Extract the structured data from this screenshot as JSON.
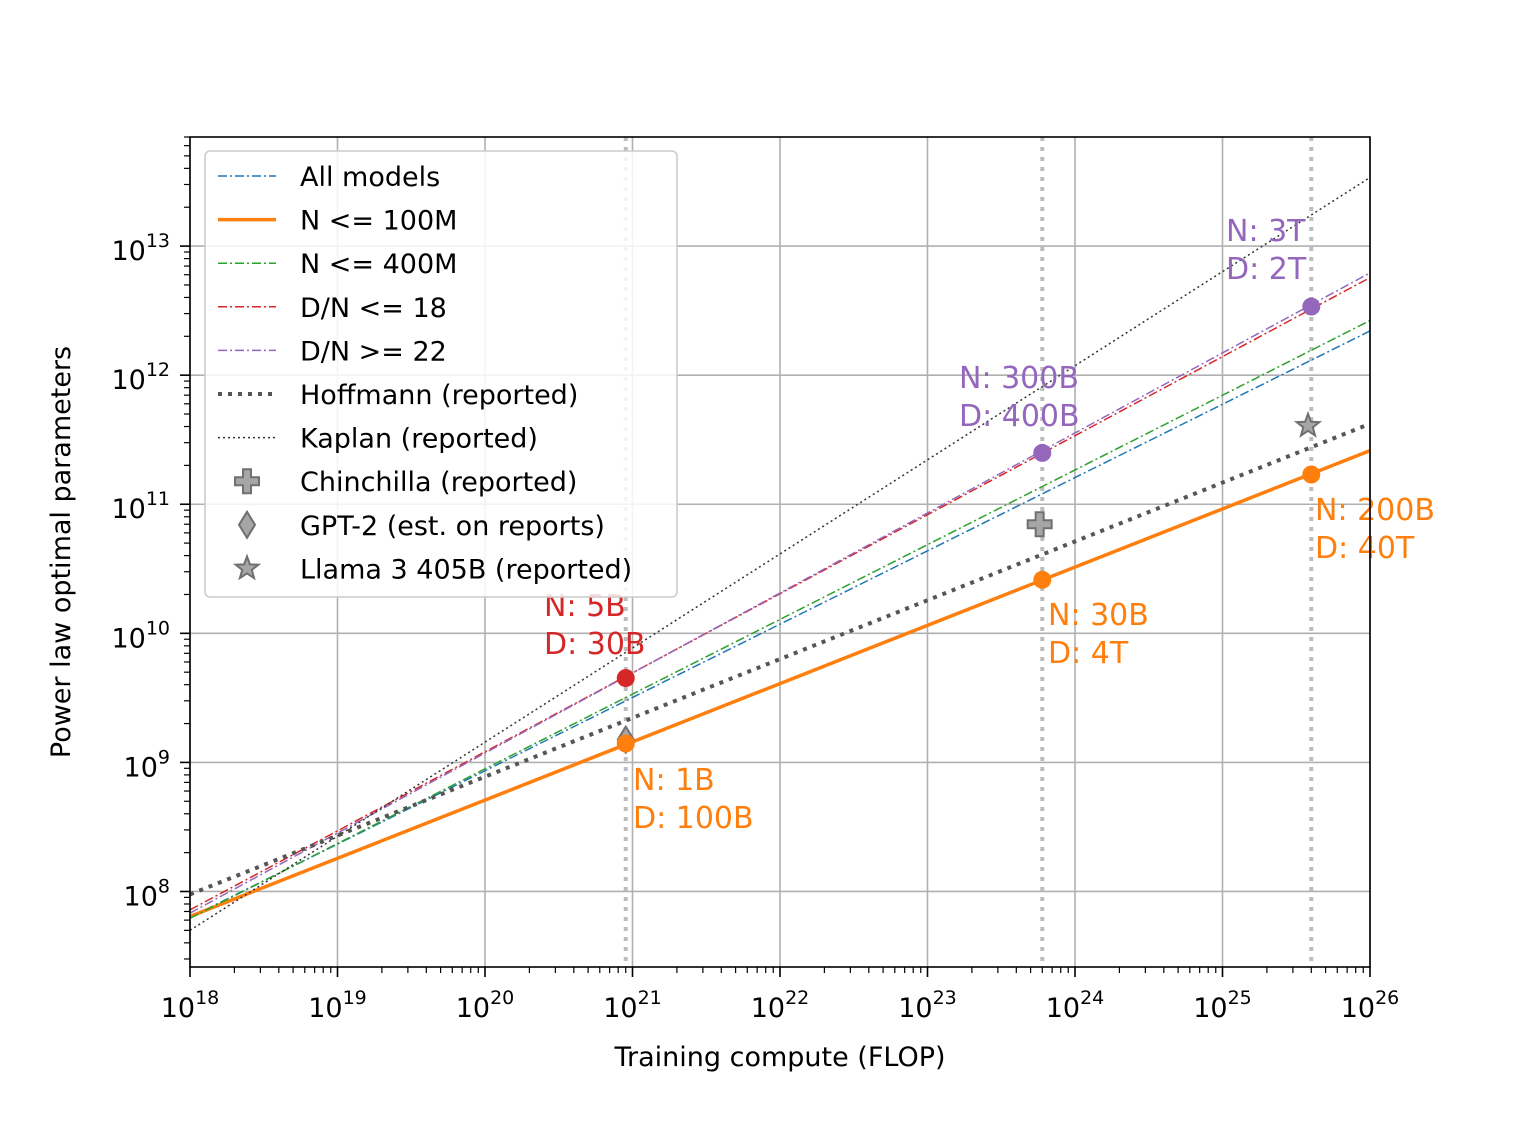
{
  "chart_data": {
    "type": "line",
    "xlabel": "Training compute (FLOP)",
    "ylabel": "Power law optimal parameters",
    "xscale": "log",
    "yscale": "log",
    "xlim": [
      1e+18,
      1e+26
    ],
    "ylim": [
      26000000.0,
      70000000000000.0
    ],
    "grid": true,
    "legend_position": "top-left",
    "x_ticks": [
      {
        "value": 1e+18,
        "base": "10",
        "exp": "18"
      },
      {
        "value": 1e+19,
        "base": "10",
        "exp": "19"
      },
      {
        "value": 1e+20,
        "base": "10",
        "exp": "20"
      },
      {
        "value": 1e+21,
        "base": "10",
        "exp": "21"
      },
      {
        "value": 1e+22,
        "base": "10",
        "exp": "22"
      },
      {
        "value": 1e+23,
        "base": "10",
        "exp": "23"
      },
      {
        "value": 1e+24,
        "base": "10",
        "exp": "24"
      },
      {
        "value": 1e+25,
        "base": "10",
        "exp": "25"
      },
      {
        "value": 1e+26,
        "base": "10",
        "exp": "26"
      }
    ],
    "y_ticks": [
      {
        "value": 100000000.0,
        "base": "10",
        "exp": "8"
      },
      {
        "value": 1000000000.0,
        "base": "10",
        "exp": "9"
      },
      {
        "value": 10000000000.0,
        "base": "10",
        "exp": "10"
      },
      {
        "value": 100000000000.0,
        "base": "10",
        "exp": "11"
      },
      {
        "value": 1000000000000.0,
        "base": "10",
        "exp": "12"
      },
      {
        "value": 10000000000000.0,
        "base": "10",
        "exp": "13"
      }
    ],
    "vlines": [
      9e+20,
      6e+23,
      4e+25
    ],
    "series": [
      {
        "name": "All models",
        "color": "#1f77b4",
        "style": "dashdot",
        "width": 1.5,
        "x": [
          1e+18,
          1e+26
        ],
        "y": [
          63000000.0,
          2200000000000.0
        ]
      },
      {
        "name": "N <= 100M",
        "color": "#ff7f0e",
        "style": "solid",
        "width": 3.5,
        "x": [
          1e+18,
          1e+26
        ],
        "y": [
          64000000.0,
          260000000000.0
        ]
      },
      {
        "name": "N <= 400M",
        "color": "#2ca02c",
        "style": "dashdot",
        "width": 1.5,
        "x": [
          1e+18,
          1e+26
        ],
        "y": [
          62000000.0,
          2650000000000.0
        ]
      },
      {
        "name": "D/N <= 18",
        "color": "#d62728",
        "style": "dashdot",
        "width": 1.5,
        "x": [
          1e+18,
          1e+26
        ],
        "y": [
          72000000.0,
          5700000000000.0
        ]
      },
      {
        "name": "D/N >= 22",
        "color": "#9467bd",
        "style": "dashdot",
        "width": 1.5,
        "x": [
          1e+18,
          1e+26
        ],
        "y": [
          68000000.0,
          6200000000000.0
        ]
      },
      {
        "name": "Hoffmann (reported)",
        "color": "#555555",
        "style": "dotted-thick",
        "width": 4,
        "x": [
          1e+18,
          1e+26
        ],
        "y": [
          95000000.0,
          420000000000.0
        ]
      },
      {
        "name": "Kaplan (reported)",
        "color": "#333333",
        "style": "dotted-thin",
        "width": 1.5,
        "x": [
          1e+18,
          1e+26
        ],
        "y": [
          50000000.0,
          34000000000000.0
        ]
      }
    ],
    "reference_points": [
      {
        "name": "Chinchilla (reported)",
        "marker": "plus",
        "x": 5.76e+23,
        "y": 70000000000.0
      },
      {
        "name": "GPT-2 (est. on reports)",
        "marker": "diamond",
        "x": 9e+20,
        "y": 1500000000.0
      },
      {
        "name": "Llama 3 405B (reported)",
        "marker": "star",
        "x": 3.8e+25,
        "y": 405000000000.0
      }
    ],
    "highlight_points": [
      {
        "x": 9e+20,
        "y": 1400000000.0,
        "color": "#ff7f0e"
      },
      {
        "x": 9e+20,
        "y": 4500000000.0,
        "color": "#d62728"
      },
      {
        "x": 6e+23,
        "y": 26000000000.0,
        "color": "#ff7f0e"
      },
      {
        "x": 6e+23,
        "y": 250000000000.0,
        "color": "#9467bd"
      },
      {
        "x": 4e+25,
        "y": 170000000000.0,
        "color": "#ff7f0e"
      },
      {
        "x": 4e+25,
        "y": 3400000000000.0,
        "color": "#9467bd"
      }
    ],
    "annotations": [
      {
        "line1": "N: 1B",
        "line2": "D: 100B",
        "color": "#ff7f0e"
      },
      {
        "line1": "N: 5B",
        "line2": "D: 30B",
        "color": "#d62728"
      },
      {
        "line1": "N: 30B",
        "line2": "D: 4T",
        "color": "#ff7f0e"
      },
      {
        "line1": "N: 300B",
        "line2": "D: 400B",
        "color": "#9467bd"
      },
      {
        "line1": "N: 200B",
        "line2": "D: 40T",
        "color": "#ff7f0e"
      },
      {
        "line1": "N: 3T",
        "line2": "D: 2T",
        "color": "#9467bd"
      }
    ]
  }
}
